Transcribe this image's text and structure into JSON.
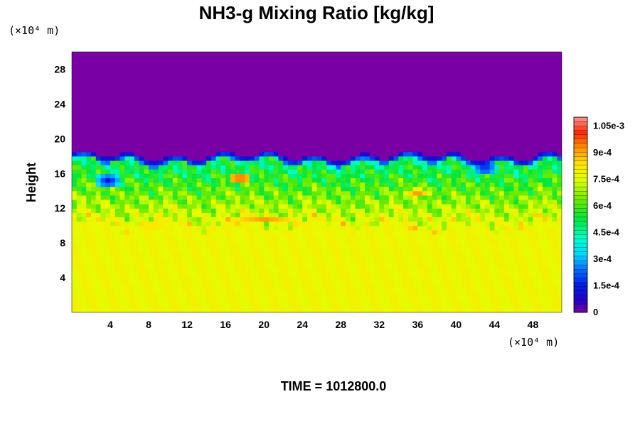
{
  "chart_data": {
    "type": "heatmap",
    "title": "NH3-g Mixing Ratio [kg/kg]",
    "ylabel": "Height",
    "x_unit_label": "(×10⁴ m)",
    "y_unit_label": "(×10⁴ m)",
    "xlim": [
      0,
      51
    ],
    "ylim": [
      0,
      30
    ],
    "x_ticks": [
      4,
      8,
      12,
      16,
      20,
      24,
      28,
      32,
      36,
      40,
      44,
      48
    ],
    "y_ticks": [
      4,
      8,
      12,
      16,
      20,
      24,
      28
    ],
    "colorbar": {
      "range": [
        0,
        0.0011
      ],
      "tick_values": [
        0,
        0.00015,
        0.0003,
        0.00045,
        0.0006,
        0.00075,
        0.0009,
        0.00105
      ],
      "tick_labels": [
        "0",
        "1.5e-4",
        "3e-4",
        "4.5e-4",
        "6e-4",
        "7.5e-4",
        "9e-4",
        "1.05e-3"
      ]
    },
    "field_description": {
      "lower_layer_value": 0.00078,
      "upper_layer_value": 0.0,
      "transition_height": 18,
      "mixed_zone_range": [
        10,
        18
      ],
      "local_maxima": [
        {
          "x": 17.5,
          "y": 15.5,
          "value": 0.00102
        },
        {
          "x": 36,
          "y": 13.8,
          "value": 0.00095
        }
      ]
    },
    "grid": false,
    "legend_placement": "right"
  },
  "footer": {
    "time_label": "TIME = 1012800.0"
  }
}
